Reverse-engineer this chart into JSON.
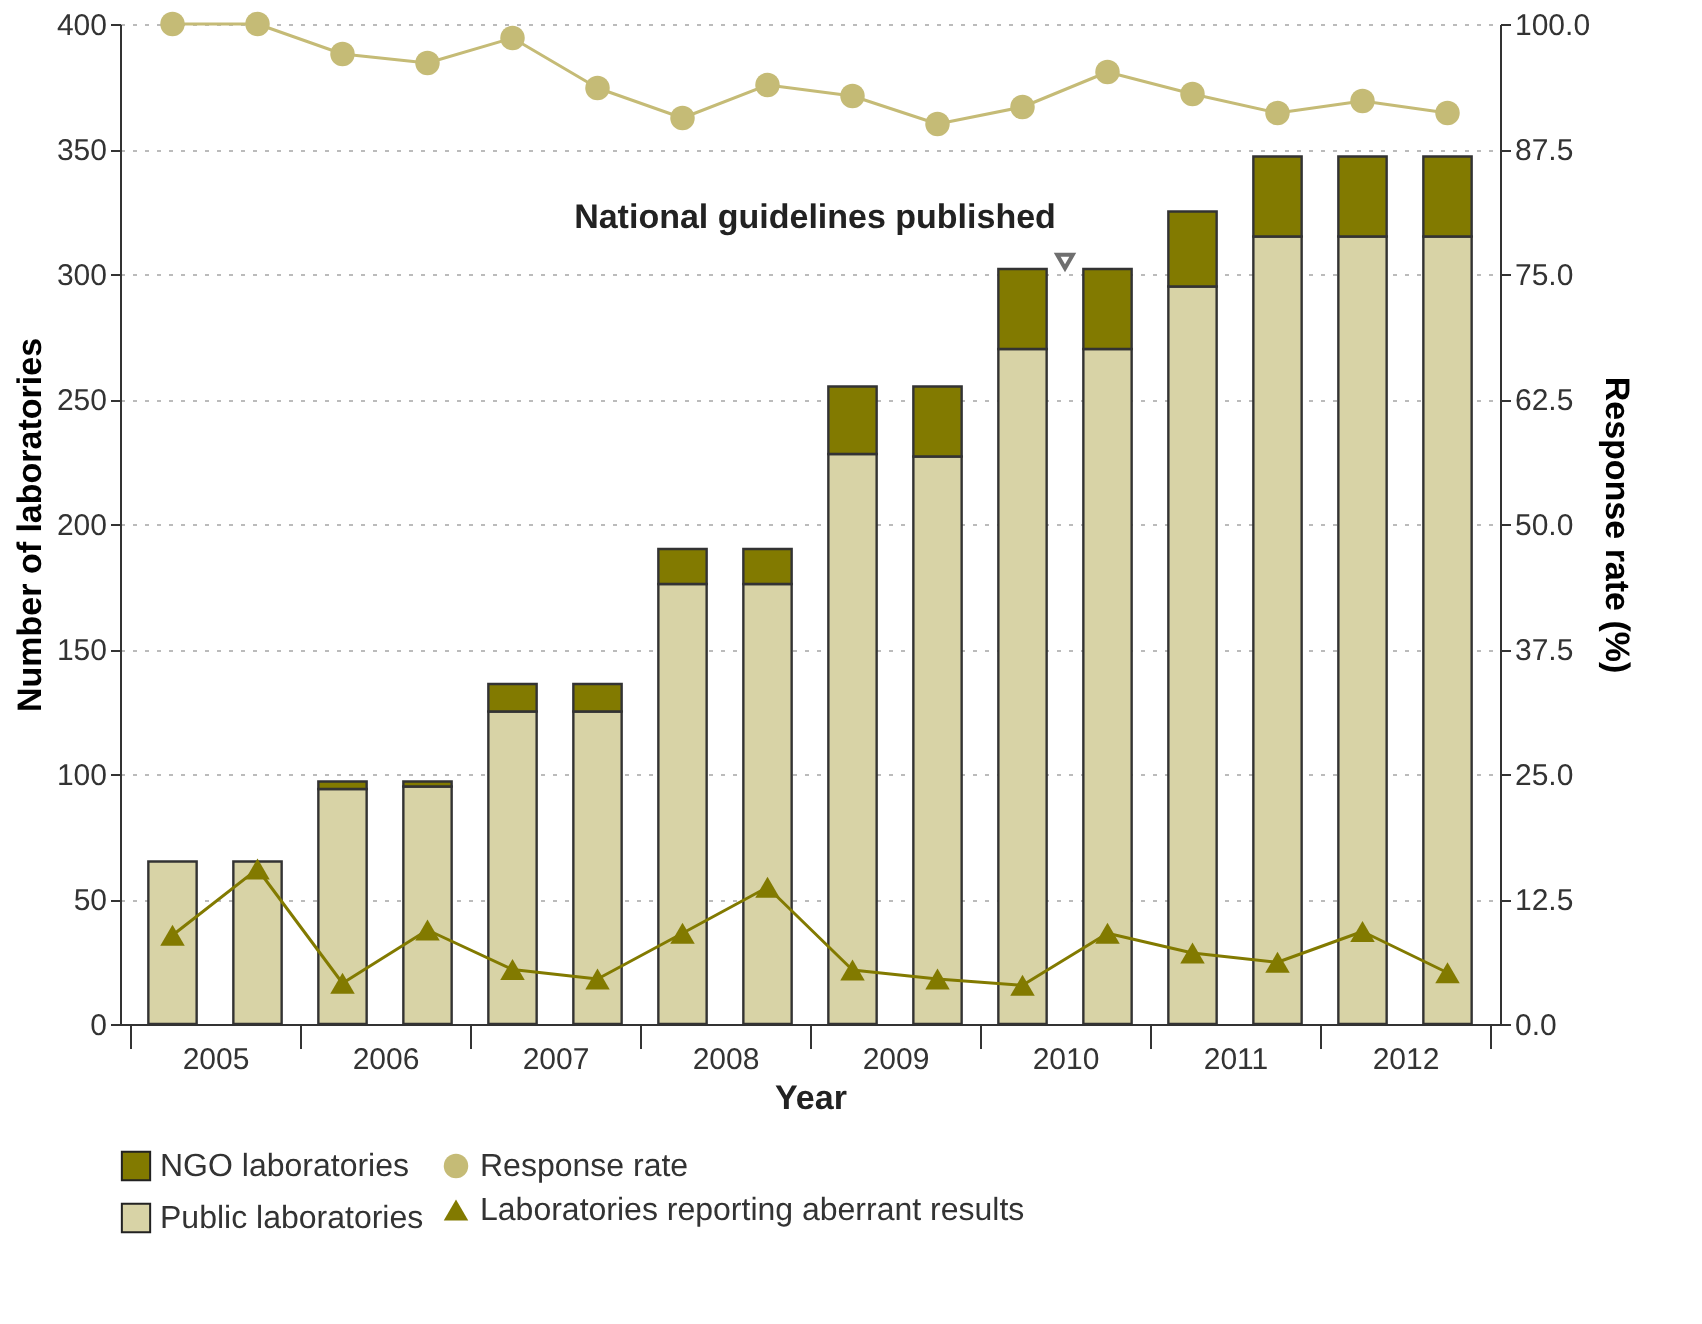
{
  "chart_data": {
    "type": "bar",
    "stacked": true,
    "xlabel": "Year",
    "ylabel": "Number of laboratories",
    "y2label": "Response rate (%)",
    "x": [
      2005.25,
      2005.75,
      2006.25,
      2006.75,
      2007.25,
      2007.75,
      2008.25,
      2008.75,
      2009.25,
      2009.75,
      2010.25,
      2010.75,
      2011.25,
      2011.75,
      2012.25,
      2012.75
    ],
    "xlim": [
      2005,
      2013
    ],
    "xticks": [
      {
        "value": 2005,
        "label": null
      },
      {
        "value": 2005.5,
        "label": "2005"
      },
      {
        "value": 2006,
        "label": null
      },
      {
        "value": 2006.5,
        "label": "2006"
      },
      {
        "value": 2007,
        "label": null
      },
      {
        "value": 2007.5,
        "label": "2007"
      },
      {
        "value": 2008,
        "label": null
      },
      {
        "value": 2008.5,
        "label": "2008"
      },
      {
        "value": 2009,
        "label": null
      },
      {
        "value": 2009.5,
        "label": "2009"
      },
      {
        "value": 2010,
        "label": null
      },
      {
        "value": 2010.5,
        "label": "2010"
      },
      {
        "value": 2011,
        "label": null
      },
      {
        "value": 2011.5,
        "label": "2011"
      },
      {
        "value": 2012,
        "label": null
      },
      {
        "value": 2012.5,
        "label": "2012"
      },
      {
        "value": 2013,
        "label": null
      }
    ],
    "ylim": [
      0,
      400
    ],
    "yticks": [
      0,
      50,
      100,
      150,
      200,
      250,
      300,
      350,
      400
    ],
    "y2lim": [
      0,
      100
    ],
    "y2ticks": [
      {
        "value": 0,
        "label": "0.0"
      },
      12.5,
      {
        "value": 25,
        "label": "25.0"
      },
      37.5,
      {
        "value": 50,
        "label": "50.0"
      },
      62.5,
      {
        "value": 75,
        "label": "75.0"
      },
      87.5,
      {
        "value": 100,
        "label": "100.0"
      }
    ],
    "grid": "y",
    "legend": "bottom",
    "series": [
      {
        "name": "Public laboratories",
        "color": "#d8d3a6",
        "values": [
          65,
          65,
          94,
          95,
          125,
          125,
          176,
          176,
          228,
          227,
          270,
          270,
          295,
          315,
          315,
          315
        ]
      },
      {
        "name": "NGO laboratories",
        "color": "#827a00",
        "values": [
          0,
          0,
          3,
          2,
          11,
          11,
          14,
          14,
          27,
          28,
          32,
          32,
          30,
          32,
          32,
          32
        ]
      },
      {
        "name": "Response rate",
        "type": "line",
        "axis": "y2",
        "marker": "circle",
        "color": "#c5bb76",
        "values": [
          100,
          100,
          97.0,
          96.1,
          98.6,
          93.6,
          90.6,
          93.9,
          92.8,
          90.0,
          91.7,
          95.2,
          93.0,
          91.1,
          92.3,
          91.1
        ]
      },
      {
        "name": "Laboratories reporting aberrant results",
        "type": "line",
        "marker": "triangle",
        "color": "#827a00",
        "values": [
          35.5,
          62,
          16.3,
          37.6,
          21.8,
          18,
          36.3,
          54.7,
          21.6,
          18,
          15.5,
          36.3,
          28.4,
          24.7,
          37,
          20.5
        ]
      }
    ],
    "annotations": [
      {
        "text": "National guidelines published",
        "x": 2010.5,
        "y": 305
      }
    ]
  }
}
